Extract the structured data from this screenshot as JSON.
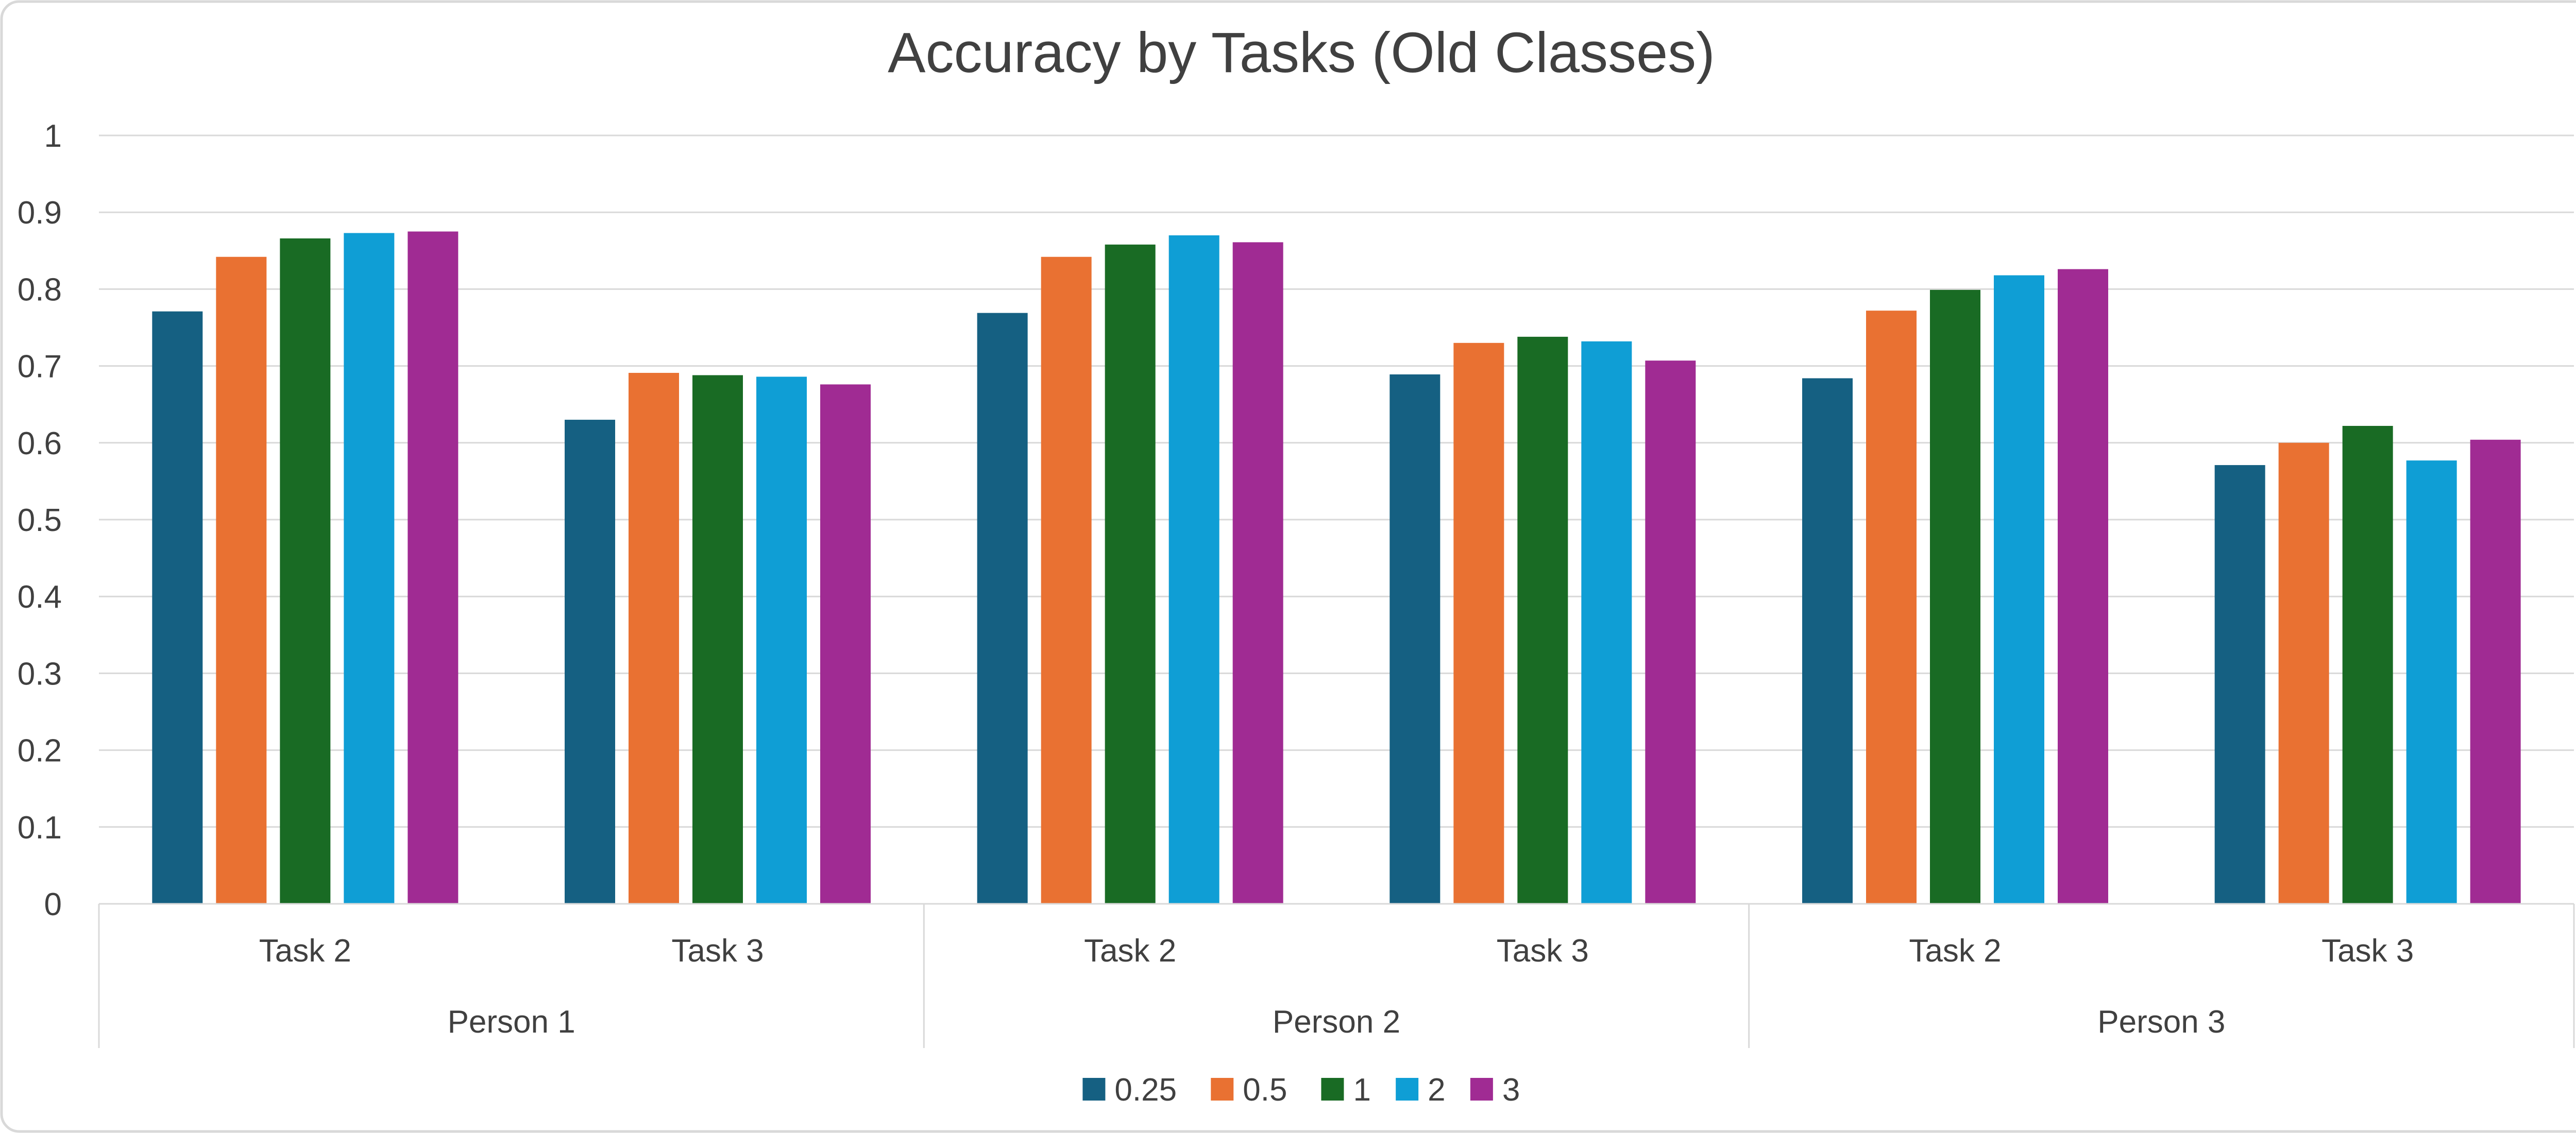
{
  "chart_data": {
    "type": "bar",
    "title": "Accuracy by Tasks (Old Classes)",
    "xlabel": "",
    "ylabel": "",
    "ylim": [
      0,
      1
    ],
    "yticks": [
      "0",
      "0.1",
      "0.2",
      "0.3",
      "0.4",
      "0.5",
      "0.6",
      "0.7",
      "0.8",
      "0.9",
      "1"
    ],
    "grid": true,
    "legend_position": "bottom",
    "groups": [
      {
        "label": "Person 1",
        "categories": [
          "Task 2",
          "Task 3"
        ]
      },
      {
        "label": "Person 2",
        "categories": [
          "Task 2",
          "Task 3"
        ]
      },
      {
        "label": "Person 3",
        "categories": [
          "Task 2",
          "Task 3"
        ]
      }
    ],
    "categories": [
      "Task 2",
      "Task 3",
      "Task 2",
      "Task 3",
      "Task 2",
      "Task 3"
    ],
    "series": [
      {
        "name": "0.25",
        "color": "#156082",
        "values": [
          0.771,
          0.63,
          0.769,
          0.689,
          0.684,
          0.571
        ]
      },
      {
        "name": "0.5",
        "color": "#E97132",
        "values": [
          0.842,
          0.691,
          0.842,
          0.73,
          0.772,
          0.6
        ]
      },
      {
        "name": "1",
        "color": "#196B24",
        "values": [
          0.866,
          0.688,
          0.858,
          0.738,
          0.799,
          0.622
        ]
      },
      {
        "name": "2",
        "color": "#0F9ED5",
        "values": [
          0.873,
          0.686,
          0.87,
          0.732,
          0.818,
          0.577
        ]
      },
      {
        "name": "3",
        "color": "#A02B93",
        "values": [
          0.875,
          0.676,
          0.861,
          0.707,
          0.826,
          0.604
        ]
      }
    ]
  }
}
